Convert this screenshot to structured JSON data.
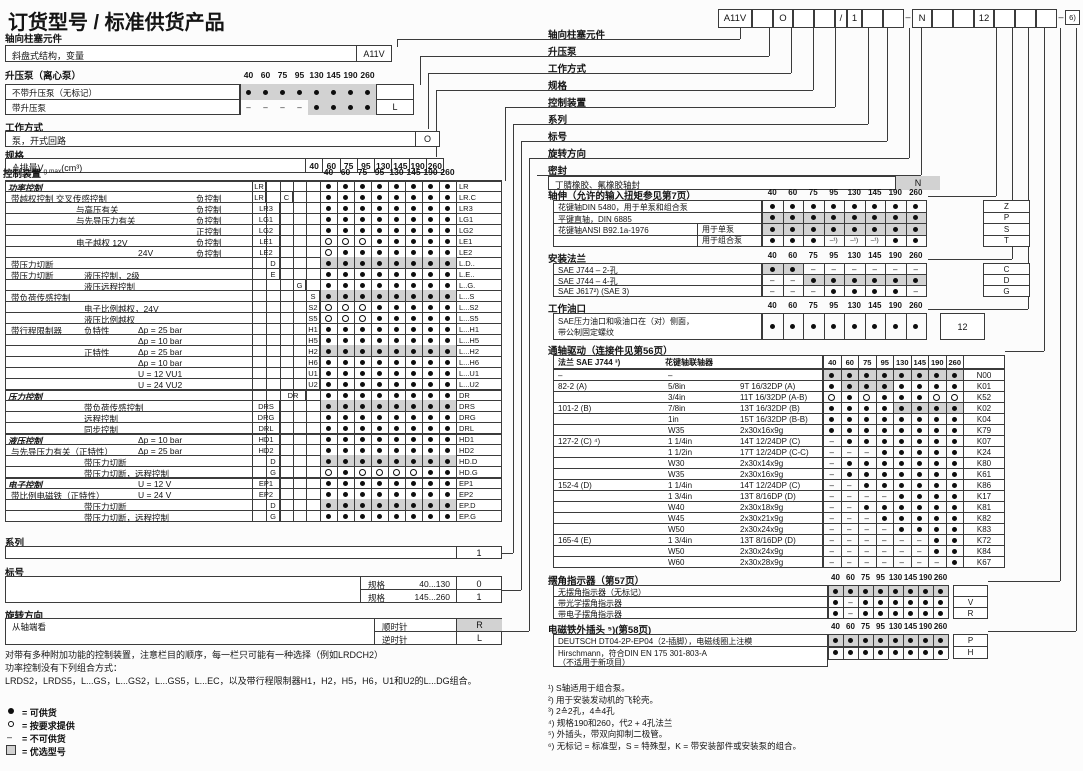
{
  "title": "订货型号 / 标准供货产品",
  "columns": [
    "40",
    "60",
    "75",
    "95",
    "130",
    "145",
    "190",
    "260"
  ],
  "model_code": {
    "boxes": [
      "A11V",
      "",
      "O",
      "",
      "",
      "/",
      "1",
      "",
      "",
      "–",
      "N",
      "",
      "",
      "12",
      "",
      "",
      "",
      "–",
      "6)"
    ]
  },
  "code_labels": [
    "轴向柱塞元件",
    "升压泵",
    "工作方式",
    "规格",
    "控制装置",
    "系列",
    "标号",
    "旋转方向",
    "密封"
  ],
  "left": {
    "axial": {
      "header": "轴向柱塞元件",
      "label": "斜盘式结构，变量",
      "code": "A11V"
    },
    "boost": {
      "header": "升压泵（离心泵）",
      "rows": [
        {
          "l": "不带升压泵（无标记）",
          "d": "SSSSSSSS",
          "code": ""
        },
        {
          "l": "带升压泵",
          "d": "DDDDSSSS",
          "code": "L"
        }
      ]
    },
    "mode": {
      "header": "工作方式",
      "label": "泵，开式回路",
      "code": "O"
    },
    "size": {
      "header": "规格",
      "label": "≙排量V",
      "sub": "g max",
      "unit": "(cm³)",
      "values": [
        "40",
        "60",
        "75",
        "95",
        "130",
        "145",
        "190",
        "260"
      ]
    },
    "control": {
      "header": "控制装置",
      "rows": [
        {
          "l": "功率控制",
          "it": 1,
          "k": [
            [
              1,
              "LR"
            ]
          ],
          "d": "BBBBBBBB",
          "r": "LR",
          "g": 1
        },
        {
          "l": "带越权控制 交叉传感控制",
          "li": 1,
          "c": "负控制",
          "k": [
            [
              1,
              "LR"
            ],
            [
              3,
              "C"
            ]
          ],
          "d": "BBBBBBBB",
          "r": "LR.C"
        },
        {
          "l": "与高压有关",
          "li": 2,
          "c": "负控制",
          "k": [
            [
              1,
              "LR3"
            ]
          ],
          "d": "BBBBBBBB",
          "r": "LR3"
        },
        {
          "l": "与先导压力有关",
          "li": 2,
          "c": "负控制",
          "k": [
            [
              1,
              "LG1"
            ]
          ],
          "d": "BBBBBBBB",
          "r": "LG1"
        },
        {
          "c": "正控制",
          "k": [
            [
              1,
              "LG2"
            ]
          ],
          "d": "BBBBBBBB",
          "r": "LG2"
        },
        {
          "l": "电子越权 12V",
          "li": 2,
          "c": "负控制",
          "k": [
            [
              1,
              "LE1"
            ]
          ],
          "d": "OOOBBBBB",
          "r": "LE1"
        },
        {
          "s": "24V",
          "c": "负控制",
          "k": [
            [
              1,
              "LE2"
            ]
          ],
          "d": "OBBBBBBB",
          "r": "LE2"
        },
        {
          "l": "带压力切断",
          "li": 1,
          "k": [
            [
              2,
              "D"
            ]
          ],
          "d": "SSSSSSSS",
          "r": "L.D.."
        },
        {
          "l": "带压力切断",
          "li": 1,
          "m": "液压控制，2级",
          "k": [
            [
              2,
              "E"
            ]
          ],
          "d": "BBBBBBBB",
          "r": "L.E.."
        },
        {
          "m": "液压远程控制",
          "k": [
            [
              4,
              "G"
            ]
          ],
          "d": "BBBBBBBB",
          "r": "L..G."
        },
        {
          "l": "带负荷传感控制",
          "li": 1,
          "k": [
            [
              5,
              "S"
            ]
          ],
          "d": "SSSSSSSS",
          "r": "L...S"
        },
        {
          "m": "电子比例越权，24V",
          "k": [
            [
              5,
              "S2"
            ]
          ],
          "d": "OOOBBBBB",
          "r": "L...S2"
        },
        {
          "m": "液压比例越权",
          "k": [
            [
              5,
              "S5"
            ]
          ],
          "d": "OOOBBBBB",
          "r": "L...S5"
        },
        {
          "l": "带行程限制器",
          "li": 1,
          "m": "负特性",
          "s": "Δp = 25 bar",
          "k": [
            [
              5,
              "H1"
            ]
          ],
          "d": "BBBBBBBB",
          "r": "L...H1"
        },
        {
          "s": "Δp = 10 bar",
          "k": [
            [
              5,
              "H5"
            ]
          ],
          "d": "BBBBBBBB",
          "r": "L...H5"
        },
        {
          "m": "正特性",
          "s": "Δp = 25 bar",
          "k": [
            [
              5,
              "H2"
            ]
          ],
          "d": "SSSSSSSS",
          "r": "L...H2"
        },
        {
          "s": "Δp = 10 bar",
          "k": [
            [
              5,
              "H6"
            ]
          ],
          "d": "BBBBBBBB",
          "r": "L...H6"
        },
        {
          "s": "U = 12 VU1",
          "k": [
            [
              5,
              "U1"
            ]
          ],
          "d": "BBBBBBBB",
          "r": "L...U1"
        },
        {
          "s": "U = 24 VU2",
          "k": [
            [
              5,
              "U2"
            ]
          ],
          "d": "BBBBBBBB",
          "r": "L...U2"
        },
        {
          "l": "压力控制",
          "it": 1,
          "k": [
            [
              3,
              "DR"
            ]
          ],
          "d": "BBBBBBBB",
          "r": "DR",
          "g": 1
        },
        {
          "m": "带负荷传感控制",
          "k": [
            [
              1,
              "DRS"
            ]
          ],
          "d": "SSSSSSSS",
          "r": "DRS"
        },
        {
          "m": "远程控制",
          "k": [
            [
              1,
              "DRG"
            ]
          ],
          "d": "BBBBBBBB",
          "r": "DRG"
        },
        {
          "m": "同步控制",
          "k": [
            [
              1,
              "DRL"
            ]
          ],
          "d": "BBBBBBBB",
          "r": "DRL"
        },
        {
          "l": "液压控制",
          "it": 1,
          "s": "Δp = 10 bar",
          "k": [
            [
              1,
              "HD1"
            ]
          ],
          "d": "BBBBBBBB",
          "r": "HD1",
          "g": 1
        },
        {
          "l": "与先导压力有关（正特性）",
          "li": 1,
          "s": "Δp = 25 bar",
          "k": [
            [
              1,
              "HD2"
            ]
          ],
          "d": "BBBBBBBB",
          "r": "HD2"
        },
        {
          "m": "带压力切断",
          "k": [
            [
              2,
              "D"
            ]
          ],
          "d": "SSSSSSSS",
          "r": "HD.D"
        },
        {
          "m": "带压力切断，远程控制",
          "k": [
            [
              2,
              "G"
            ]
          ],
          "d": "OBOOOOBB",
          "r": "HD.G"
        },
        {
          "l": "电子控制",
          "it": 1,
          "s": "U = 12 V",
          "k": [
            [
              1,
              "EP1"
            ]
          ],
          "d": "BBBBBBBB",
          "r": "EP1",
          "g": 1
        },
        {
          "l": "带比例电磁铁（正特性）",
          "li": 1,
          "s": "U = 24 V",
          "k": [
            [
              1,
              "EP2"
            ]
          ],
          "d": "BBBBBBBB",
          "r": "EP2"
        },
        {
          "m": "带压力切断",
          "k": [
            [
              2,
              "D"
            ]
          ],
          "d": "SSSSSSSS",
          "r": "EP.D"
        },
        {
          "m": "带压力切断，远程控制",
          "k": [
            [
              2,
              "G"
            ]
          ],
          "d": "BBBBBBBB",
          "r": "EP.G"
        }
      ]
    },
    "series": {
      "header": "系列",
      "value": "1"
    },
    "index": {
      "header": "标号",
      "rows": [
        {
          "t": "规格",
          "range": "40...130",
          "code": "0"
        },
        {
          "t": "规格",
          "range": "145...260",
          "code": "1"
        }
      ]
    },
    "rotation": {
      "header": "旋转方向",
      "label": "从轴端看",
      "rows": [
        {
          "t": "顺时针",
          "code": "R",
          "sh": 1
        },
        {
          "t": "逆时针",
          "code": "L",
          "sh": 0
        }
      ]
    },
    "notes": [
      "对带有多种附加功能的控制装置，注意栏目的顺序，每一栏只可能有一种选择（例如LRDCH2）",
      "功率控制没有下列组合方式：",
      "LRDS2，LRDS5，L...GS，L...GS2，L...GS5，L...EC，以及带行程限制器H1，H2，H5，H6，U1和U2的L...DG组合。"
    ],
    "legend": [
      {
        "sym": "dot",
        "t": "= 可供货"
      },
      {
        "sym": "circle",
        "t": "= 按要求提供"
      },
      {
        "sym": "dash",
        "t": "= 不可供货"
      },
      {
        "sym": "box",
        "t": "= 优选型号"
      }
    ]
  },
  "right": {
    "seal": {
      "label": "丁腈橡胶、氟橡胶轴封",
      "code": "N"
    },
    "shaft": {
      "header": "轴伸（允许的输入扭矩参见第7页）",
      "rows": [
        {
          "l": "花键轴DIN 5480，用于单泵和组合泵",
          "d": "BBBBBBBB",
          "code": "Z"
        },
        {
          "l": "平键直轴，DIN 6885",
          "d": "SSSSSSSS",
          "code": "P"
        },
        {
          "l": "花键轴ANSI B92.1a-1976",
          "s": "用于单泵",
          "d": "SSSSSSSS",
          "code": "S"
        },
        {
          "s": "用于组合泵",
          "d": "BBBnnnBB",
          "code": "T"
        }
      ]
    },
    "flange": {
      "header": "安装法兰",
      "rows": [
        {
          "l": "SAE J744 – 2-孔",
          "d": "SSDDDDDD",
          "code": "C"
        },
        {
          "l": "SAE J744 – 4-孔",
          "d": "DDSSSSSS",
          "code": "D"
        },
        {
          "l": "SAE J617²) (SAE 3)",
          "d": "DDDBBBBD",
          "code": "G"
        }
      ]
    },
    "ports": {
      "header": "工作油口",
      "label1": "SAE压力油口和吸油口在（对）侧面，",
      "label2": "带公制固定螺纹",
      "d": "BBBBBBBB",
      "code": "12"
    },
    "through_drive": {
      "header": "通轴驱动（连接件见第56页）",
      "col1": "法兰 SAE J744 ³)",
      "col2": "花键轴联轴器",
      "rows": [
        {
          "f": "–",
          "s": "–",
          "sp": "",
          "d": "SSSSSSSS",
          "code": "N00"
        },
        {
          "f": "82-2   (A)",
          "s": "5/8in",
          "sp": "9T 16/32DP   (A)",
          "d": "BSSSBBBB",
          "code": "K01"
        },
        {
          "s": "3/4in",
          "sp": "11T 16/32DP (A-B)",
          "d": "OBOBBBOO",
          "code": "K52"
        },
        {
          "f": "101-2  (B)",
          "s": "7/8in",
          "sp": "13T 16/32DP (B)",
          "d": "BBBBSSSS",
          "code": "K02"
        },
        {
          "s": "1in",
          "sp": "15T 16/32DP (B-B)",
          "d": "BBBBBBBB",
          "code": "K04"
        },
        {
          "s": "W35",
          "sp": "2x30x16x9g",
          "d": "BBBBBBBB",
          "code": "K79"
        },
        {
          "f": "127-2  (C) ⁴)",
          "s": "1 1/4in",
          "sp": "14T 12/24DP (C)",
          "d": "DBBBBBBB",
          "code": "K07"
        },
        {
          "s": "1 1/2in",
          "sp": "17T 12/24DP (C-C)",
          "d": "DDDBBBBB",
          "code": "K24"
        },
        {
          "s": "W30",
          "sp": "2x30x14x9g",
          "d": "DBBBBBBB",
          "code": "K80"
        },
        {
          "s": "W35",
          "sp": "2x30x16x9g",
          "d": "DBBBBBBB",
          "code": "K61"
        },
        {
          "f": "152-4  (D)",
          "s": "1 1/4in",
          "sp": "14T 12/24DP (C)",
          "d": "DDBBBBBB",
          "code": "K86"
        },
        {
          "s": "1 3/4in",
          "sp": "13T 8/16DP   (D)",
          "d": "DDDDBBBB",
          "code": "K17"
        },
        {
          "s": "W40",
          "sp": "2x30x18x9g",
          "d": "DDBBBBBB",
          "code": "K81"
        },
        {
          "s": "W45",
          "sp": "2x30x21x9g",
          "d": "DDDBBBBB",
          "code": "K82"
        },
        {
          "s": "W50",
          "sp": "2x30x24x9g",
          "d": "DDDDBBBB",
          "code": "K83"
        },
        {
          "f": "165-4  (E)",
          "s": "1 3/4in",
          "sp": "13T 8/16DP   (D)",
          "d": "DDDDDDBB",
          "code": "K72"
        },
        {
          "s": "W50",
          "sp": "2x30x24x9g",
          "d": "DDDDDDBB",
          "code": "K84"
        },
        {
          "s": "W60",
          "sp": "2x30x28x9g",
          "d": "DDDDDDDB",
          "code": "K67"
        }
      ]
    },
    "indicator": {
      "header": "摆角指示器（第57页）",
      "rows": [
        {
          "l": "无摆角指示器（无标记）",
          "d": "SSSSSSSS",
          "code": ""
        },
        {
          "l": "带光学摆角指示器",
          "d": "BDBBBBBB",
          "code": "V"
        },
        {
          "l": "带电子摆角指示器",
          "d": "BDBBBBBB",
          "code": "R"
        }
      ]
    },
    "connector": {
      "header": "电磁铁外插头 ⁵)(第58页)",
      "rows": [
        {
          "l": "DEUTSCH DT04-2P-EP04（2-插脚），电磁线圈上注模",
          "d": "SSSSSSSS",
          "code": "P"
        },
        {
          "l": "Hirschmann，符合DIN EN 175 301-803-A",
          "l2": "（不适用于新项目）",
          "d": "BBBBBBBB",
          "code": "H"
        }
      ]
    },
    "footnotes": [
      "¹) S轴适用于组合泵。",
      "²) 用于安装发动机的飞轮壳。",
      "³) 2≙2孔，4≙4孔",
      "⁴) 规格190和260，代2 + 4孔法兰",
      "⁵) 外插头，带双向抑制二极管。",
      "⁶) 无标记 = 标准型，S = 特殊型，K = 带安装部件或安装泵的组合。"
    ]
  }
}
